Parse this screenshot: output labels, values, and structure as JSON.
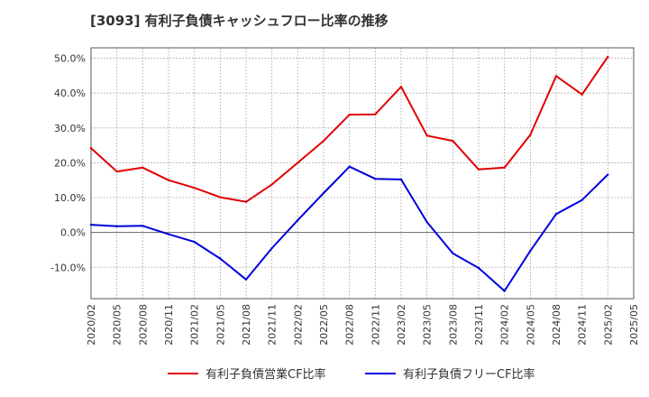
{
  "chart_data": {
    "type": "line",
    "title": "[3093]  有利子負債キャッシュフロー比率の推移",
    "x": [
      "2020/02",
      "2020/05",
      "2020/08",
      "2020/11",
      "2021/02",
      "2021/05",
      "2021/08",
      "2021/11",
      "2022/02",
      "2022/05",
      "2022/08",
      "2022/11",
      "2023/02",
      "2023/05",
      "2023/08",
      "2023/11",
      "2024/02",
      "2024/05",
      "2024/08",
      "2024/11",
      "2025/02",
      "2025/05"
    ],
    "x_ticks": [
      "2020/02",
      "2020/05",
      "2020/08",
      "2020/11",
      "2021/02",
      "2021/05",
      "2021/08",
      "2021/11",
      "2022/02",
      "2022/05",
      "2022/08",
      "2022/11",
      "2023/02",
      "2023/05",
      "2023/08",
      "2023/11",
      "2024/02",
      "2024/05",
      "2024/08",
      "2024/11",
      "2025/02",
      "2025/05"
    ],
    "y_ticks": [
      -10,
      0,
      10,
      20,
      30,
      40,
      50
    ],
    "y_tick_labels": [
      "-10.0%",
      "0.0%",
      "10.0%",
      "20.0%",
      "30.0%",
      "40.0%",
      "50.0%"
    ],
    "ylim": [
      -19,
      53
    ],
    "grid": true,
    "zero_line": true,
    "legend_position": "bottom",
    "series": [
      {
        "name": "有利子負債営業CF比率",
        "color": "#e00000",
        "values": [
          24.2,
          17.5,
          18.6,
          15.0,
          12.8,
          10.1,
          8.8,
          13.8,
          20.0,
          26.3,
          33.8,
          33.9,
          41.8,
          27.8,
          26.3,
          18.1,
          18.6,
          28.0,
          44.9,
          39.6,
          50.4,
          null
        ]
      },
      {
        "name": "有利子負債フリーCF比率",
        "color": "#0000dd",
        "values": [
          2.2,
          1.8,
          1.9,
          -0.5,
          -2.7,
          -7.5,
          -13.5,
          -4.5,
          3.5,
          11.3,
          18.9,
          15.4,
          15.2,
          3.0,
          -6.0,
          -10.2,
          -16.8,
          -5.3,
          5.3,
          9.3,
          16.6,
          null
        ]
      }
    ]
  }
}
